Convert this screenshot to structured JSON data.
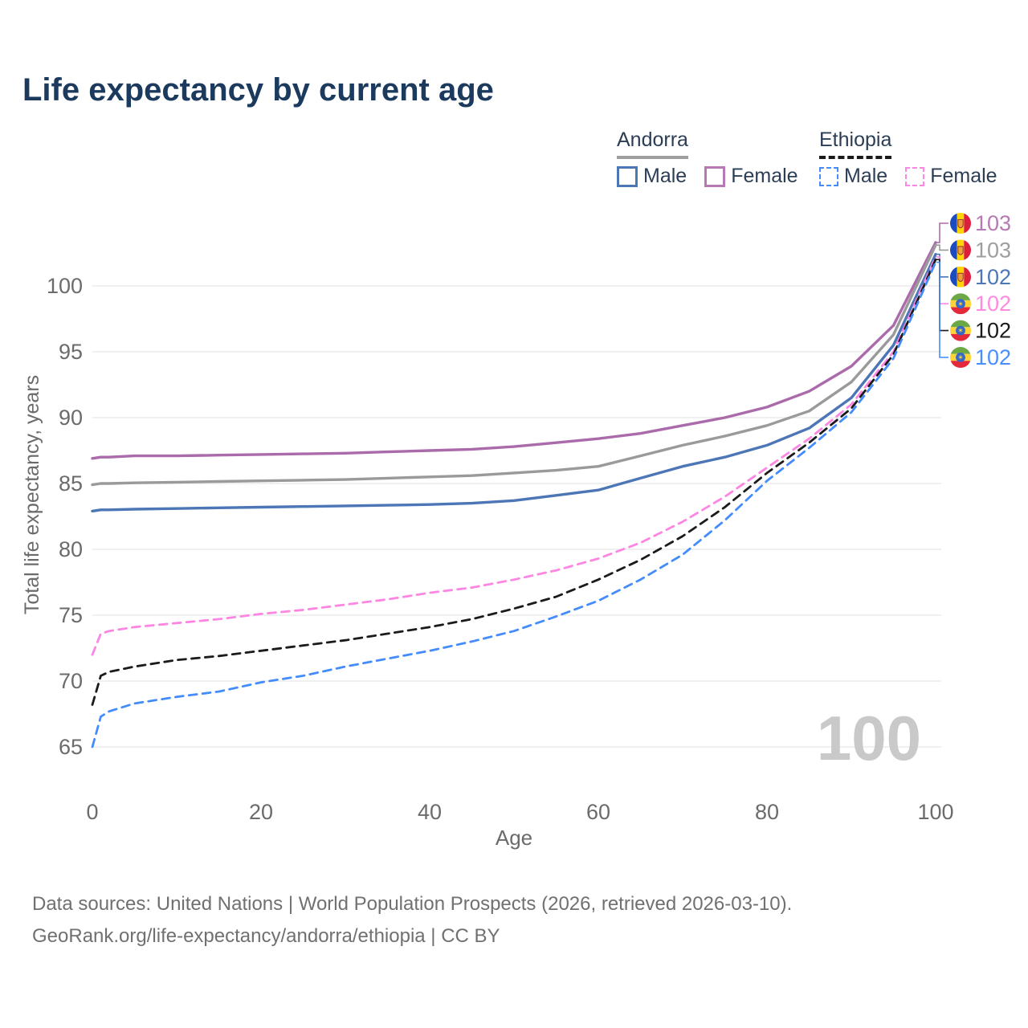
{
  "title": "Life expectancy by current age",
  "watermark": "100",
  "legend": {
    "groups": [
      {
        "label": "Andorra",
        "line_style": "solid",
        "underline_color": "#9e9e9e",
        "items": [
          {
            "label": "Male",
            "color": "#4d76b7"
          },
          {
            "label": "Female",
            "color": "#b878b5"
          }
        ]
      },
      {
        "label": "Ethiopia",
        "line_style": "dashed",
        "underline_color": "#1a1a1a",
        "items": [
          {
            "label": "Male",
            "color": "#448cfc"
          },
          {
            "label": "Female",
            "color": "#fd86e3"
          }
        ]
      }
    ]
  },
  "chart_data": {
    "type": "line",
    "title": "Life expectancy by current age",
    "xlabel": "Age",
    "ylabel": "Total life expectancy, years",
    "xlim": [
      0,
      100
    ],
    "ylim": [
      63,
      104
    ],
    "xticks": [
      0,
      20,
      40,
      60,
      80,
      100
    ],
    "yticks": [
      65,
      70,
      75,
      80,
      85,
      90,
      95,
      100
    ],
    "grid": "horizontal",
    "legend_position": "top-right",
    "series": [
      {
        "name": "Andorra Female",
        "country": "Andorra",
        "sex": "Female",
        "line": "solid",
        "color": "#ab6bab",
        "label": "103",
        "label_color": "#b57ab4",
        "flag": "andorra",
        "x": [
          0,
          1,
          2,
          5,
          10,
          15,
          20,
          25,
          30,
          35,
          40,
          45,
          50,
          55,
          60,
          65,
          70,
          75,
          80,
          85,
          90,
          95,
          100
        ],
        "y": [
          86.9,
          87.0,
          87.0,
          87.1,
          87.1,
          87.15,
          87.2,
          87.25,
          87.3,
          87.4,
          87.5,
          87.6,
          87.8,
          88.1,
          88.4,
          88.8,
          89.4,
          90.0,
          90.8,
          92.0,
          93.9,
          97.0,
          103.3
        ]
      },
      {
        "name": "Andorra Both sexes",
        "country": "Andorra",
        "sex": "Both",
        "line": "solid",
        "color": "#9a9a9a",
        "label": "103",
        "label_color": "#9e9e9e",
        "flag": "andorra",
        "x": [
          0,
          1,
          2,
          5,
          10,
          15,
          20,
          25,
          30,
          35,
          40,
          45,
          50,
          55,
          60,
          65,
          70,
          75,
          80,
          85,
          90,
          95,
          100
        ],
        "y": [
          84.9,
          85.0,
          85.0,
          85.05,
          85.1,
          85.15,
          85.2,
          85.25,
          85.3,
          85.4,
          85.5,
          85.6,
          85.8,
          86.0,
          86.3,
          87.1,
          87.9,
          88.6,
          89.4,
          90.5,
          92.7,
          96.3,
          103.1
        ]
      },
      {
        "name": "Andorra Male",
        "country": "Andorra",
        "sex": "Male",
        "line": "solid",
        "color": "#4d76b7",
        "label": "102",
        "label_color": "#4d76b7",
        "flag": "andorra",
        "x": [
          0,
          1,
          2,
          5,
          10,
          15,
          20,
          25,
          30,
          35,
          40,
          45,
          50,
          55,
          60,
          65,
          70,
          75,
          80,
          85,
          90,
          95,
          100
        ],
        "y": [
          82.9,
          83.0,
          83.0,
          83.05,
          83.1,
          83.15,
          83.2,
          83.25,
          83.3,
          83.35,
          83.4,
          83.5,
          83.7,
          84.1,
          84.5,
          85.4,
          86.3,
          87.0,
          87.9,
          89.2,
          91.5,
          95.5,
          102.4
        ]
      },
      {
        "name": "Ethiopia Female",
        "country": "Ethiopia",
        "sex": "Female",
        "line": "dashed",
        "color": "#fd86e3",
        "label": "102",
        "label_color": "#ff8ae0",
        "flag": "ethiopia",
        "x": [
          0,
          1,
          2,
          5,
          10,
          15,
          20,
          25,
          30,
          35,
          40,
          45,
          50,
          55,
          60,
          65,
          70,
          75,
          80,
          85,
          90,
          95,
          100
        ],
        "y": [
          72.0,
          73.6,
          73.8,
          74.1,
          74.4,
          74.7,
          75.1,
          75.4,
          75.8,
          76.2,
          76.7,
          77.1,
          77.7,
          78.4,
          79.3,
          80.5,
          82.1,
          84.0,
          86.2,
          88.4,
          91.0,
          95.0,
          102.2
        ]
      },
      {
        "name": "Ethiopia Both sexes",
        "country": "Ethiopia",
        "sex": "Both",
        "line": "dashed",
        "color": "#1b1b1b",
        "label": "102",
        "label_color": "#1a1a1a",
        "flag": "ethiopia",
        "x": [
          0,
          1,
          2,
          5,
          10,
          15,
          20,
          25,
          30,
          35,
          40,
          45,
          50,
          55,
          60,
          65,
          70,
          75,
          80,
          85,
          90,
          95,
          100
        ],
        "y": [
          68.2,
          70.4,
          70.7,
          71.1,
          71.6,
          71.9,
          72.3,
          72.7,
          73.1,
          73.6,
          74.1,
          74.7,
          75.5,
          76.4,
          77.7,
          79.2,
          81.0,
          83.2,
          85.8,
          88.1,
          90.7,
          94.8,
          102.0
        ]
      },
      {
        "name": "Ethiopia Male",
        "country": "Ethiopia",
        "sex": "Male",
        "line": "dashed",
        "color": "#448cfc",
        "label": "102",
        "label_color": "#4a8dfc",
        "flag": "ethiopia",
        "x": [
          0,
          1,
          2,
          5,
          10,
          15,
          20,
          25,
          30,
          35,
          40,
          45,
          50,
          55,
          60,
          65,
          70,
          75,
          80,
          85,
          90,
          95,
          100
        ],
        "y": [
          65.0,
          67.3,
          67.7,
          68.3,
          68.8,
          69.2,
          69.9,
          70.4,
          71.1,
          71.7,
          72.3,
          73.0,
          73.8,
          74.9,
          76.1,
          77.7,
          79.6,
          82.2,
          85.2,
          87.7,
          90.4,
          94.5,
          101.8
        ]
      }
    ]
  },
  "footer": {
    "line1": "Data sources: United Nations | World Population Prospects (2026, retrieved 2026-03-10).",
    "line2": "GeoRank.org/life-expectancy/andorra/ethiopia | CC BY"
  }
}
